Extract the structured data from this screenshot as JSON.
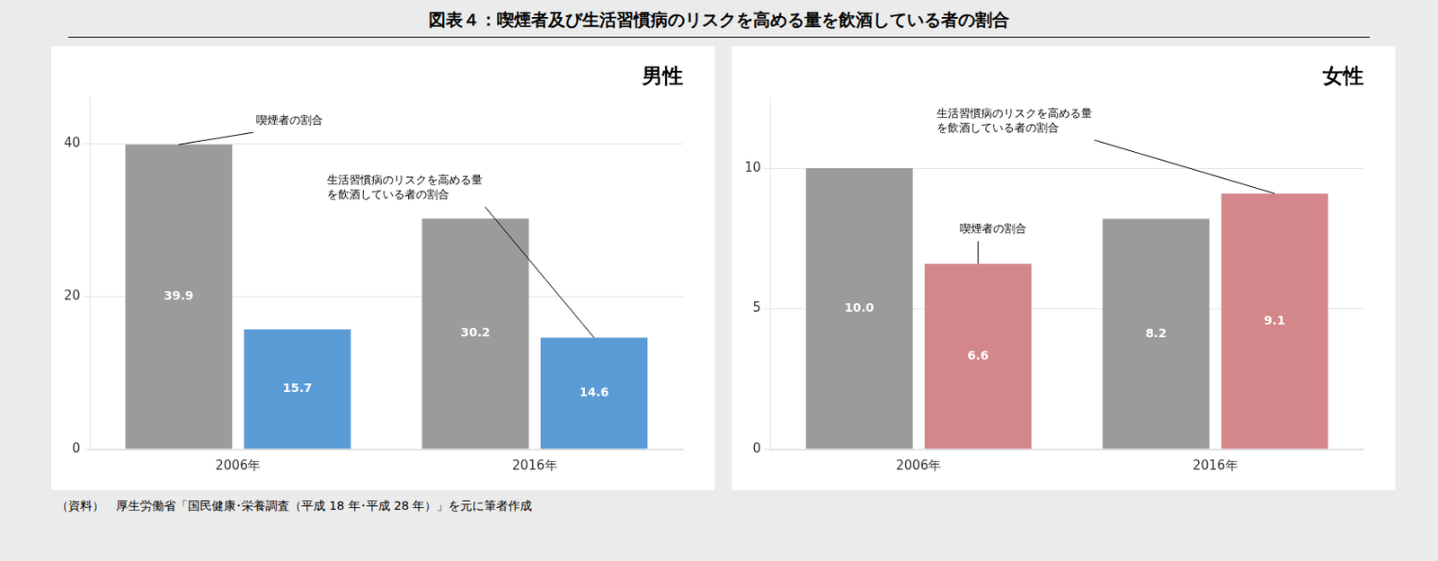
{
  "title": "図表４：喫煙者及び生活習慣病のリスクを高める量を飲酒している者の割合",
  "caption": "（資料）　厚生労働省「国民健康･栄養調査（平成 18 年･平成 28 年）」を元に筆者作成",
  "chart_data": [
    {
      "type": "bar",
      "title": "男性",
      "categories": [
        "2006年",
        "2016年"
      ],
      "series": [
        {
          "color": "#9b9b9b",
          "values": [
            39.9,
            30.2
          ],
          "value_labels": [
            "39.9",
            "30.2"
          ]
        },
        {
          "color": "#5b9bd5",
          "values": [
            15.7,
            14.6
          ],
          "value_labels": [
            "15.7",
            "14.6"
          ]
        }
      ],
      "ylim": [
        0,
        46
      ],
      "yticks": [
        0,
        20,
        40
      ],
      "grid": true,
      "data_labels": true,
      "annotations": [
        {
          "text": "喫煙者の割合",
          "category": "2006年",
          "series": 0
        },
        {
          "text": "生活習慣病のリスクを高める量\nを飲酒している者の割合",
          "category": "2016年",
          "series": 1
        }
      ]
    },
    {
      "type": "bar",
      "title": "女性",
      "categories": [
        "2006年",
        "2016年"
      ],
      "series": [
        {
          "color": "#9b9b9b",
          "values": [
            10.0,
            8.2
          ],
          "value_labels": [
            "10.0",
            "8.2"
          ]
        },
        {
          "color": "#d4878a",
          "values": [
            6.6,
            9.1
          ],
          "value_labels": [
            "6.6",
            "9.1"
          ]
        }
      ],
      "ylim": [
        0,
        12.5
      ],
      "yticks": [
        0,
        5,
        10
      ],
      "grid": true,
      "data_labels": true,
      "annotations": [
        {
          "text": "生活習慣病のリスクを高める量\nを飲酒している者の割合",
          "category": "2016年",
          "series": 1
        },
        {
          "text": "喫煙者の割合",
          "category": "2006年",
          "series": 1
        }
      ]
    }
  ]
}
